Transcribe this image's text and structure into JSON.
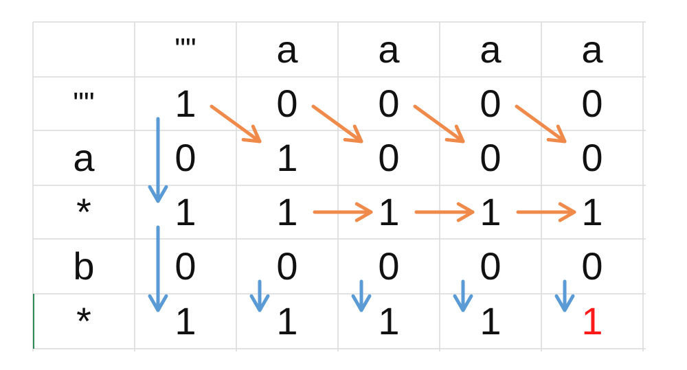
{
  "table": {
    "column_headers": [
      "\"\"",
      "a",
      "a",
      "a",
      "a"
    ],
    "row_headers": [
      "\"\"",
      "a",
      "*",
      "b",
      "*"
    ],
    "rows": [
      [
        "1",
        "0",
        "0",
        "0",
        "0"
      ],
      [
        "0",
        "1",
        "0",
        "0",
        "0"
      ],
      [
        "1",
        "1",
        "1",
        "1",
        "1"
      ],
      [
        "0",
        "0",
        "0",
        "0",
        "0"
      ],
      [
        "1",
        "1",
        "1",
        "1",
        "1"
      ]
    ],
    "highlight": {
      "row": 4,
      "col": 4,
      "color": "#ff1a1a"
    }
  },
  "arrows": {
    "diagonal_color": "#f08a4b",
    "vertical_color": "#5b9bd5",
    "horizontal_color": "#f08a4b",
    "diagonal": [
      {
        "from": [
          0,
          0
        ],
        "to": [
          1,
          1
        ]
      },
      {
        "from": [
          0,
          1
        ],
        "to": [
          1,
          2
        ]
      },
      {
        "from": [
          0,
          2
        ],
        "to": [
          1,
          3
        ]
      },
      {
        "from": [
          0,
          3
        ],
        "to": [
          1,
          4
        ]
      }
    ],
    "horizontal": [
      {
        "from": [
          2,
          1
        ],
        "to": [
          2,
          2
        ]
      },
      {
        "from": [
          2,
          2
        ],
        "to": [
          2,
          3
        ]
      },
      {
        "from": [
          2,
          3
        ],
        "to": [
          2,
          4
        ]
      }
    ],
    "vertical": [
      {
        "from": [
          0,
          0
        ],
        "to": [
          2,
          0
        ]
      },
      {
        "from": [
          2,
          0
        ],
        "to": [
          4,
          0
        ]
      },
      {
        "from": [
          3,
          1
        ],
        "to": [
          4,
          1
        ]
      },
      {
        "from": [
          3,
          2
        ],
        "to": [
          4,
          2
        ]
      },
      {
        "from": [
          3,
          3
        ],
        "to": [
          4,
          3
        ]
      },
      {
        "from": [
          3,
          4
        ],
        "to": [
          4,
          4
        ]
      }
    ]
  },
  "grid": {
    "line_color": "#d9d9d9",
    "left_border_color": "#2e8b57"
  }
}
